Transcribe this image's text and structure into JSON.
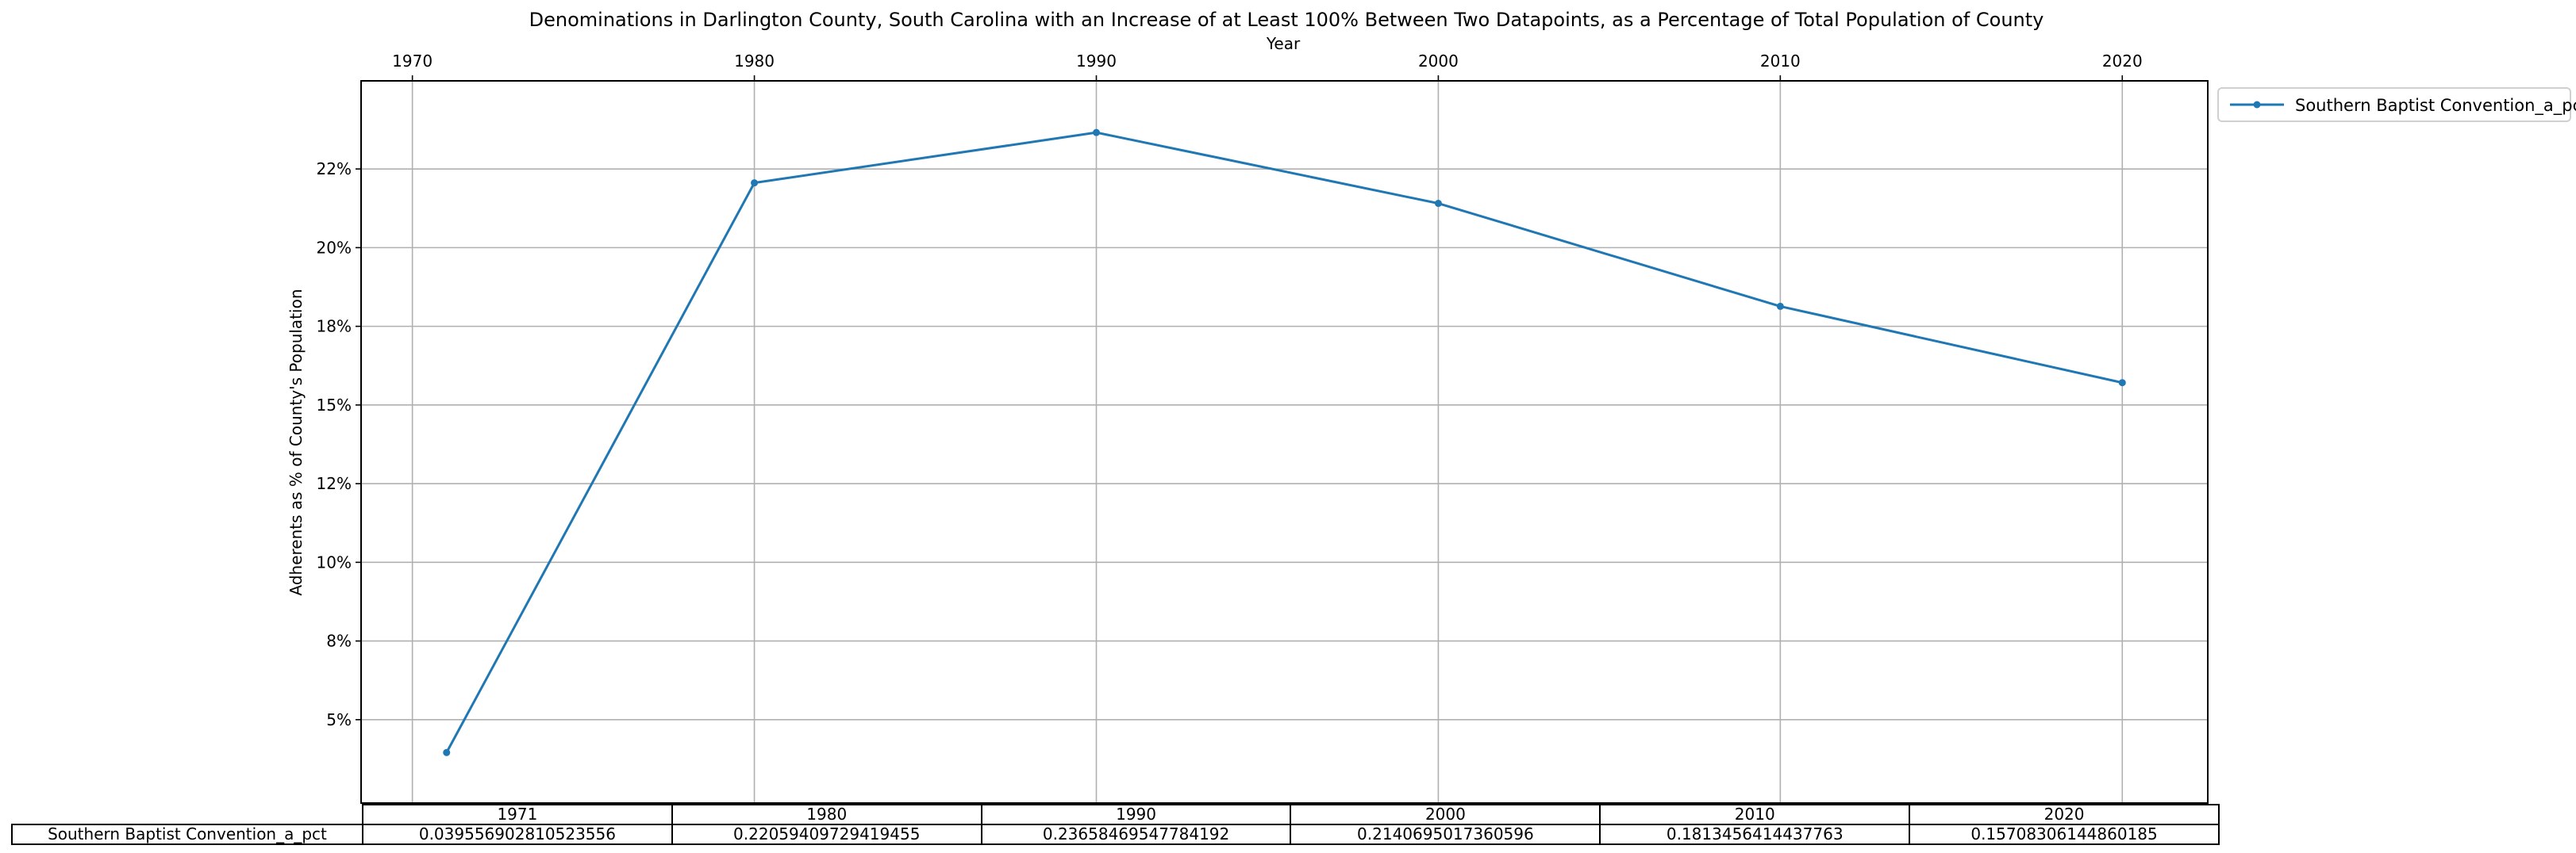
{
  "chart_data": {
    "type": "line",
    "title": "Denominations in Darlington County, South Carolina with an Increase of at Least 100% Between Two Datapoints, as a Percentage of Total Population of County",
    "xlabel": "Year",
    "ylabel": "Adherents as % of County's Population",
    "x_ticks": [
      "1970",
      "1980",
      "1990",
      "2000",
      "2010",
      "2020"
    ],
    "y_ticks": [
      "5%",
      "8%",
      "10%",
      "12%",
      "15%",
      "18%",
      "20%",
      "22%"
    ],
    "y_tick_values": [
      0.05,
      0.075,
      0.1,
      0.125,
      0.15,
      0.175,
      0.2,
      0.225
    ],
    "xlim": [
      1968.5,
      2022.5
    ],
    "ylim": [
      0.0235,
      0.253
    ],
    "grid": true,
    "legend_position": "outside-top-right",
    "series": [
      {
        "name": "Southern Baptist Convention_a_pct",
        "color": "#1f77b4",
        "x": [
          1971,
          1980,
          1990,
          2000,
          2010,
          2020
        ],
        "y": [
          0.039556902810523556,
          0.22059409729419455,
          0.23658469547784192,
          0.2140695017360596,
          0.1813456414437763,
          0.15708306144860185
        ]
      }
    ],
    "table": {
      "columns": [
        "1971",
        "1980",
        "1990",
        "2000",
        "2010",
        "2020"
      ],
      "rows": [
        {
          "label": "Southern Baptist Convention_a_pct",
          "cells": [
            "0.039556902810523556",
            "0.22059409729419455",
            "0.23658469547784192",
            "0.2140695017360596",
            "0.1813456414437763",
            "0.15708306144860185"
          ]
        }
      ]
    }
  }
}
